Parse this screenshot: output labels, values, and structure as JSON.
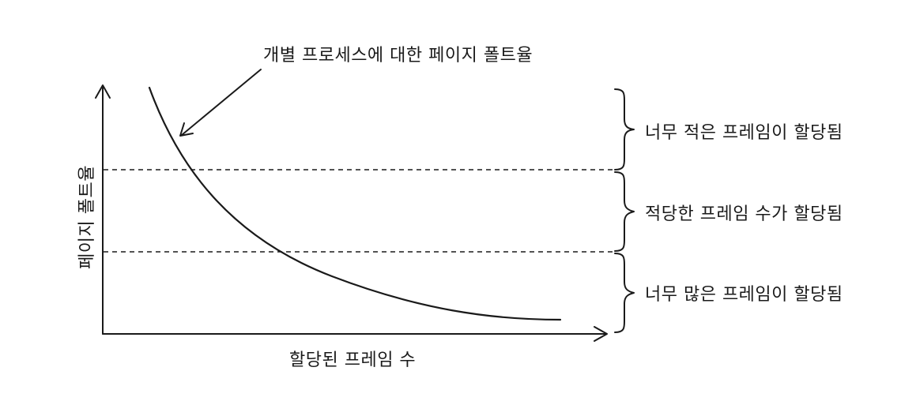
{
  "annotation": {
    "label": "개별 프로세스에 대한 페이지 폴트율"
  },
  "axes": {
    "x_label": "할당된 프레임 수",
    "y_label": "페이지 폴트율"
  },
  "zones": [
    {
      "label": "너무 적은 프레임이 할당됨"
    },
    {
      "label": "적당한 프레임 수가 할당됨"
    },
    {
      "label": "너무 많은 프레임이 할당됨"
    }
  ],
  "colors": {
    "ink": "#1a1a1a",
    "background": "#ffffff"
  }
}
